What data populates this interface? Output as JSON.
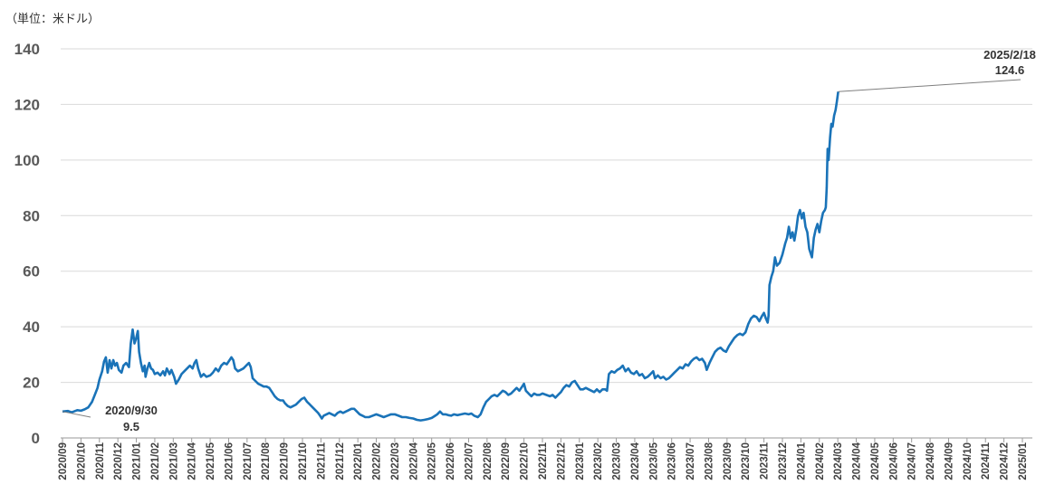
{
  "unit_label": "（単位：米ドル）",
  "chart_data": {
    "type": "line",
    "title": "",
    "xlabel": "",
    "ylabel": "",
    "ylim": [
      0,
      140
    ],
    "yticks": [
      0,
      20,
      40,
      60,
      80,
      100,
      120,
      140
    ],
    "grid": true,
    "line_color": "#1a73b8",
    "grid_color": "#d9d9d9",
    "categories": [
      "2020/09",
      "2020/10",
      "2020/11",
      "2020/12",
      "2021/01",
      "2021/02",
      "2021/03",
      "2021/04",
      "2021/05",
      "2021/06",
      "2021/07",
      "2021/08",
      "2021/09",
      "2021/10",
      "2021/11",
      "2021/12",
      "2022/01",
      "2022/02",
      "2022/03",
      "2022/04",
      "2022/05",
      "2022/06",
      "2022/07",
      "2022/08",
      "2022/09",
      "2022/10",
      "2022/11",
      "2022/12",
      "2023/01",
      "2023/02",
      "2023/03",
      "2023/04",
      "2023/05",
      "2023/06",
      "2023/07",
      "2023/08",
      "2023/09",
      "2023/10",
      "2023/11",
      "2023/12",
      "2024/01",
      "2024/02",
      "2024/03",
      "2024/04",
      "2024/05",
      "2024/06",
      "2024/07",
      "2024/08",
      "2024/09",
      "2024/10",
      "2024/11",
      "2024/12",
      "2025/01"
    ],
    "series": [
      {
        "values": [
          [
            0,
            9.5
          ],
          [
            0.3,
            9.7
          ],
          [
            0.5,
            9.2
          ],
          [
            0.8,
            10
          ],
          [
            1.0,
            9.8
          ],
          [
            1.2,
            10.3
          ],
          [
            1.4,
            11
          ],
          [
            1.6,
            13
          ],
          [
            1.75,
            15.5
          ],
          [
            1.9,
            18
          ],
          [
            2.0,
            21
          ],
          [
            2.15,
            24
          ],
          [
            2.25,
            27.5
          ],
          [
            2.35,
            29
          ],
          [
            2.45,
            23.5
          ],
          [
            2.55,
            28
          ],
          [
            2.65,
            25
          ],
          [
            2.75,
            28
          ],
          [
            2.85,
            26
          ],
          [
            2.95,
            27
          ],
          [
            3.05,
            24.5
          ],
          [
            3.2,
            23.5
          ],
          [
            3.3,
            26
          ],
          [
            3.45,
            27
          ],
          [
            3.6,
            25.5
          ],
          [
            3.7,
            34
          ],
          [
            3.8,
            39
          ],
          [
            3.9,
            34
          ],
          [
            4.0,
            36
          ],
          [
            4.08,
            38.5
          ],
          [
            4.15,
            31
          ],
          [
            4.25,
            27
          ],
          [
            4.35,
            24
          ],
          [
            4.45,
            26
          ],
          [
            4.5,
            22
          ],
          [
            4.6,
            25
          ],
          [
            4.7,
            27
          ],
          [
            4.8,
            25
          ],
          [
            4.9,
            24.5
          ],
          [
            5.0,
            23
          ],
          [
            5.15,
            23.5
          ],
          [
            5.3,
            22.5
          ],
          [
            5.45,
            24
          ],
          [
            5.55,
            22.5
          ],
          [
            5.65,
            25
          ],
          [
            5.8,
            23
          ],
          [
            5.9,
            24.5
          ],
          [
            6.05,
            22
          ],
          [
            6.15,
            19.5
          ],
          [
            6.3,
            21
          ],
          [
            6.45,
            23
          ],
          [
            6.6,
            24
          ],
          [
            6.75,
            25
          ],
          [
            6.9,
            26
          ],
          [
            7.05,
            25
          ],
          [
            7.15,
            27
          ],
          [
            7.25,
            28
          ],
          [
            7.35,
            25
          ],
          [
            7.5,
            22
          ],
          [
            7.65,
            23
          ],
          [
            7.8,
            22
          ],
          [
            8.0,
            22.5
          ],
          [
            8.15,
            23.5
          ],
          [
            8.3,
            25
          ],
          [
            8.45,
            24
          ],
          [
            8.6,
            26
          ],
          [
            8.75,
            27
          ],
          [
            8.9,
            26.5
          ],
          [
            9.05,
            28
          ],
          [
            9.15,
            29
          ],
          [
            9.25,
            28
          ],
          [
            9.35,
            25
          ],
          [
            9.5,
            24
          ],
          [
            9.65,
            24.5
          ],
          [
            9.8,
            25
          ],
          [
            9.95,
            26
          ],
          [
            10.1,
            27
          ],
          [
            10.2,
            25.5
          ],
          [
            10.3,
            21.5
          ],
          [
            10.45,
            20.5
          ],
          [
            10.6,
            19.5
          ],
          [
            10.75,
            19
          ],
          [
            10.9,
            18.5
          ],
          [
            11.05,
            18.5
          ],
          [
            11.2,
            18
          ],
          [
            11.35,
            16.5
          ],
          [
            11.5,
            15
          ],
          [
            11.65,
            14
          ],
          [
            11.8,
            13.5
          ],
          [
            11.95,
            13.5
          ],
          [
            12.05,
            12.5
          ],
          [
            12.2,
            11.5
          ],
          [
            12.35,
            11
          ],
          [
            12.5,
            11.5
          ],
          [
            12.65,
            12
          ],
          [
            12.8,
            13
          ],
          [
            12.95,
            14
          ],
          [
            13.1,
            14.5
          ],
          [
            13.25,
            13
          ],
          [
            13.4,
            12
          ],
          [
            13.55,
            11
          ],
          [
            13.7,
            10
          ],
          [
            13.85,
            9
          ],
          [
            13.95,
            8
          ],
          [
            14.05,
            7
          ],
          [
            14.15,
            8
          ],
          [
            14.3,
            8.5
          ],
          [
            14.45,
            9
          ],
          [
            14.6,
            8.5
          ],
          [
            14.75,
            8
          ],
          [
            14.9,
            9
          ],
          [
            15.05,
            9.5
          ],
          [
            15.2,
            9
          ],
          [
            15.35,
            9.5
          ],
          [
            15.5,
            10
          ],
          [
            15.65,
            10.5
          ],
          [
            15.8,
            10.5
          ],
          [
            15.95,
            9.5
          ],
          [
            16.1,
            8.5
          ],
          [
            16.25,
            8
          ],
          [
            16.4,
            7.5
          ],
          [
            16.6,
            7.5
          ],
          [
            16.8,
            8
          ],
          [
            17.0,
            8.5
          ],
          [
            17.2,
            8
          ],
          [
            17.4,
            7.5
          ],
          [
            17.6,
            8
          ],
          [
            17.8,
            8.5
          ],
          [
            18.0,
            8.5
          ],
          [
            18.2,
            8
          ],
          [
            18.4,
            7.5
          ],
          [
            18.6,
            7.5
          ],
          [
            18.8,
            7.2
          ],
          [
            19.0,
            7
          ],
          [
            19.2,
            6.5
          ],
          [
            19.4,
            6.3
          ],
          [
            19.6,
            6.5
          ],
          [
            19.8,
            6.8
          ],
          [
            20.0,
            7.2
          ],
          [
            20.15,
            7.8
          ],
          [
            20.3,
            8.5
          ],
          [
            20.45,
            9.5
          ],
          [
            20.6,
            8.5
          ],
          [
            20.75,
            8.5
          ],
          [
            20.9,
            8.2
          ],
          [
            21.05,
            8
          ],
          [
            21.2,
            8.5
          ],
          [
            21.4,
            8.2
          ],
          [
            21.6,
            8.5
          ],
          [
            21.8,
            8.8
          ],
          [
            22.0,
            8.5
          ],
          [
            22.15,
            8.8
          ],
          [
            22.3,
            8
          ],
          [
            22.5,
            7.5
          ],
          [
            22.65,
            8.5
          ],
          [
            22.8,
            11
          ],
          [
            22.95,
            13
          ],
          [
            23.1,
            14
          ],
          [
            23.25,
            15
          ],
          [
            23.4,
            15.5
          ],
          [
            23.55,
            15
          ],
          [
            23.7,
            16
          ],
          [
            23.85,
            17
          ],
          [
            24.0,
            16.5
          ],
          [
            24.15,
            15.5
          ],
          [
            24.3,
            16
          ],
          [
            24.45,
            17
          ],
          [
            24.6,
            18
          ],
          [
            24.75,
            17
          ],
          [
            24.9,
            18.5
          ],
          [
            25.0,
            19.5
          ],
          [
            25.1,
            17
          ],
          [
            25.25,
            16
          ],
          [
            25.4,
            15
          ],
          [
            25.55,
            16
          ],
          [
            25.7,
            15.5
          ],
          [
            25.85,
            15.5
          ],
          [
            26.0,
            16
          ],
          [
            26.2,
            15.5
          ],
          [
            26.4,
            15
          ],
          [
            26.55,
            15.5
          ],
          [
            26.7,
            14.5
          ],
          [
            26.85,
            15.5
          ],
          [
            27.0,
            16.5
          ],
          [
            27.15,
            18
          ],
          [
            27.3,
            19
          ],
          [
            27.45,
            18.5
          ],
          [
            27.6,
            20
          ],
          [
            27.75,
            20.5
          ],
          [
            27.9,
            19
          ],
          [
            28.05,
            17.5
          ],
          [
            28.2,
            17.5
          ],
          [
            28.35,
            18
          ],
          [
            28.5,
            17.5
          ],
          [
            28.65,
            17
          ],
          [
            28.8,
            16.5
          ],
          [
            28.95,
            17.5
          ],
          [
            29.1,
            16.5
          ],
          [
            29.25,
            17.5
          ],
          [
            29.4,
            17.5
          ],
          [
            29.5,
            17
          ],
          [
            29.6,
            23
          ],
          [
            29.75,
            24
          ],
          [
            29.9,
            23.5
          ],
          [
            30.05,
            24.5
          ],
          [
            30.2,
            25
          ],
          [
            30.35,
            26
          ],
          [
            30.5,
            24
          ],
          [
            30.65,
            25
          ],
          [
            30.8,
            23.5
          ],
          [
            30.95,
            23
          ],
          [
            31.1,
            24
          ],
          [
            31.25,
            22.5
          ],
          [
            31.4,
            23
          ],
          [
            31.55,
            21.5
          ],
          [
            31.7,
            22
          ],
          [
            31.85,
            23
          ],
          [
            32.0,
            24
          ],
          [
            32.1,
            21.5
          ],
          [
            32.25,
            22.5
          ],
          [
            32.4,
            21.5
          ],
          [
            32.55,
            22
          ],
          [
            32.7,
            21
          ],
          [
            32.85,
            21.5
          ],
          [
            33.0,
            22.5
          ],
          [
            33.15,
            23.5
          ],
          [
            33.3,
            24.5
          ],
          [
            33.45,
            25.5
          ],
          [
            33.6,
            25
          ],
          [
            33.75,
            26.5
          ],
          [
            33.9,
            26
          ],
          [
            34.05,
            27.5
          ],
          [
            34.2,
            28.5
          ],
          [
            34.35,
            29
          ],
          [
            34.5,
            28
          ],
          [
            34.65,
            28.5
          ],
          [
            34.8,
            27
          ],
          [
            34.9,
            24.5
          ],
          [
            35.05,
            27
          ],
          [
            35.2,
            29
          ],
          [
            35.35,
            31
          ],
          [
            35.5,
            32
          ],
          [
            35.65,
            32.5
          ],
          [
            35.8,
            31.5
          ],
          [
            35.95,
            31
          ],
          [
            36.1,
            33
          ],
          [
            36.25,
            34.5
          ],
          [
            36.4,
            36
          ],
          [
            36.55,
            37
          ],
          [
            36.7,
            37.5
          ],
          [
            36.85,
            37
          ],
          [
            37.0,
            38
          ],
          [
            37.15,
            41
          ],
          [
            37.3,
            43
          ],
          [
            37.45,
            44
          ],
          [
            37.6,
            43.5
          ],
          [
            37.75,
            42
          ],
          [
            37.9,
            44
          ],
          [
            38.0,
            45
          ],
          [
            38.1,
            43
          ],
          [
            38.2,
            41.5
          ],
          [
            38.25,
            44
          ],
          [
            38.3,
            55
          ],
          [
            38.4,
            58
          ],
          [
            38.5,
            60
          ],
          [
            38.6,
            65
          ],
          [
            38.7,
            62
          ],
          [
            38.85,
            63
          ],
          [
            39.0,
            66
          ],
          [
            39.15,
            70
          ],
          [
            39.25,
            72
          ],
          [
            39.35,
            76
          ],
          [
            39.45,
            72
          ],
          [
            39.55,
            74
          ],
          [
            39.65,
            71
          ],
          [
            39.75,
            75
          ],
          [
            39.85,
            80
          ],
          [
            39.95,
            82
          ],
          [
            40.05,
            79
          ],
          [
            40.15,
            81
          ],
          [
            40.25,
            76
          ],
          [
            40.35,
            74
          ],
          [
            40.45,
            68
          ],
          [
            40.55,
            66
          ],
          [
            40.6,
            65
          ],
          [
            40.7,
            72
          ],
          [
            40.8,
            75
          ],
          [
            40.9,
            77
          ],
          [
            41.0,
            74
          ],
          [
            41.1,
            78
          ],
          [
            41.2,
            81
          ],
          [
            41.3,
            82
          ],
          [
            41.35,
            83
          ],
          [
            41.4,
            90
          ],
          [
            41.45,
            104
          ],
          [
            41.5,
            100
          ],
          [
            41.58,
            108
          ],
          [
            41.65,
            113
          ],
          [
            41.72,
            112
          ],
          [
            41.8,
            116
          ],
          [
            41.88,
            118
          ],
          [
            41.95,
            121
          ],
          [
            42.02,
            124.6
          ]
        ]
      }
    ],
    "annotations": [
      {
        "label_date": "2020/9/30",
        "label_value": "9.5",
        "x": 0,
        "y": 9.5
      },
      {
        "label_date": "2025/2/18",
        "label_value": "124.6",
        "x": 42.02,
        "y": 124.6
      }
    ]
  }
}
